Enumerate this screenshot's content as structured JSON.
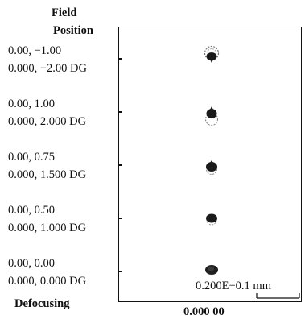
{
  "header": {
    "line1": "Field",
    "line2": "Position"
  },
  "fields": [
    {
      "position": "0.00, −1.00",
      "angle": "0.000, −2.00 DG"
    },
    {
      "position": "0.00, 1.00",
      "angle": "0.000, 2.000 DG"
    },
    {
      "position": "0.00, 0.75",
      "angle": "0.000, 1.500 DG"
    },
    {
      "position": "0.00, 0.50",
      "angle": "0.000, 1.000 DG"
    },
    {
      "position": "0.00, 0.00",
      "angle": "0.000, 0.000 DG"
    }
  ],
  "footer": {
    "defocusing_label": "Defocusing",
    "defocus_value": "0.000 00"
  },
  "scale": {
    "text": "0.200E−0.1 mm"
  },
  "colors": {
    "ink": "#111111",
    "spot": "#1a1a1a",
    "ring": "#777777"
  }
}
